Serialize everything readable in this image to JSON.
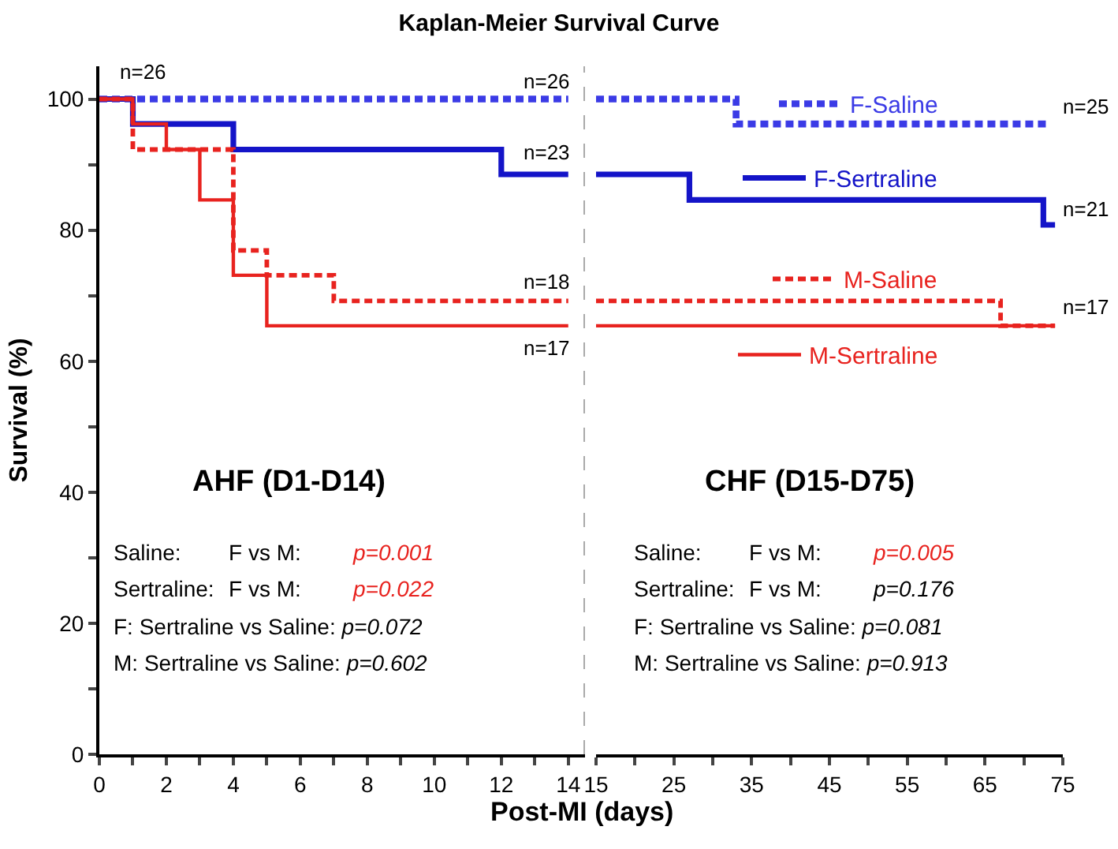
{
  "chart_data": [
    {
      "type": "step",
      "title": "Kaplan-Meier Survival Curve",
      "xlabel": "Post-MI (days)",
      "ylabel": "Survival (%)",
      "xlim": [
        0,
        14.5
      ],
      "xticks": [
        0,
        {
          "value": 1,
          "label": null
        },
        2,
        {
          "value": 3,
          "label": null
        },
        4,
        {
          "value": 5,
          "label": null
        },
        6,
        {
          "value": 7,
          "label": null
        },
        8,
        {
          "value": 9,
          "label": null
        },
        10,
        {
          "value": 11,
          "label": null
        },
        12,
        {
          "value": 13,
          "label": null
        },
        14
      ],
      "ylim": [
        0,
        105
      ],
      "yticks": [
        0,
        {
          "value": 10,
          "label": null
        },
        20,
        {
          "value": 30,
          "label": null
        },
        40,
        {
          "value": 50,
          "label": null
        },
        60,
        {
          "value": 70,
          "label": null
        },
        80,
        {
          "value": 90,
          "label": null
        },
        100
      ],
      "legend": false,
      "series": [
        {
          "color": "#3b3be6",
          "line_style": "dashed",
          "x": [
            0,
            14
          ],
          "values": [
            100,
            100
          ]
        },
        {
          "color": "#1414c8",
          "line_style": "solid",
          "x": [
            0,
            1,
            4,
            12,
            14
          ],
          "values": [
            100,
            96.2,
            92.3,
            88.5,
            88.5
          ]
        },
        {
          "color": "#e8231f",
          "line_style": "dashed",
          "x": [
            0,
            1,
            4,
            5,
            7,
            14
          ],
          "values": [
            100,
            92.3,
            76.9,
            73.1,
            69.2,
            69.2
          ]
        },
        {
          "color": "#e8231f",
          "line_style": "solid",
          "x": [
            0,
            1,
            2,
            3,
            4,
            5,
            14
          ],
          "values": [
            100,
            96.2,
            92.3,
            84.6,
            73.1,
            65.4,
            65.4
          ]
        }
      ],
      "ref_lines": [
        {
          "axis": "x",
          "value": 14.5,
          "color": "#aaaaaa",
          "line_style": "dashed"
        }
      ],
      "annotations": [
        "AHF (D1-D14)",
        "Saline:",
        "F vs M:",
        "p=0.001",
        "Sertraline:",
        "F vs M:",
        "p=0.022",
        "F: Sertraline vs Saline:",
        "p=0.072",
        "M: Sertraline vs Saline:",
        "p=0.602",
        "n=26",
        "n=26",
        "n=23",
        "n=18",
        "n=17"
      ]
    },
    {
      "type": "step",
      "xlim": [
        15,
        75
      ],
      "xticks": [
        15,
        {
          "value": 20,
          "label": null
        },
        25,
        {
          "value": 30,
          "label": null
        },
        35,
        {
          "value": 40,
          "label": null
        },
        45,
        {
          "value": 50,
          "label": null
        },
        55,
        {
          "value": 60,
          "label": null
        },
        65,
        {
          "value": 70,
          "label": null
        },
        75
      ],
      "ylim": [
        0,
        105
      ],
      "tick_labels": "x",
      "legend": "top right",
      "series": [
        {
          "name": "F-Saline",
          "color": "#3b3be6",
          "line_style": "dashed",
          "x": [
            15,
            33,
            73
          ],
          "values": [
            100,
            96.2,
            96.2
          ]
        },
        {
          "name": "F-Sertraline",
          "color": "#1414c8",
          "line_style": "solid",
          "x": [
            15,
            27,
            72.5,
            74
          ],
          "values": [
            88.5,
            84.6,
            80.8,
            80.8
          ]
        },
        {
          "name": "M-Saline",
          "color": "#e8231f",
          "line_style": "dashed",
          "x": [
            15,
            67,
            74
          ],
          "values": [
            69.2,
            65.4,
            65.4
          ]
        },
        {
          "name": "M-Sertraline",
          "color": "#e8231f",
          "line_style": "solid",
          "x": [
            15,
            74
          ],
          "values": [
            65.4,
            65.4
          ]
        }
      ],
      "annotations": [
        "CHF (D15-D75)",
        "Saline:",
        "F vs M:",
        "p=0.005",
        "Sertraline:",
        "F vs M:",
        "p=0.176",
        "F: Sertraline vs Saline:",
        "p=0.081",
        "M: Sertraline vs Saline:",
        "p=0.913",
        "n=25",
        "n=21",
        "n=17"
      ]
    }
  ]
}
